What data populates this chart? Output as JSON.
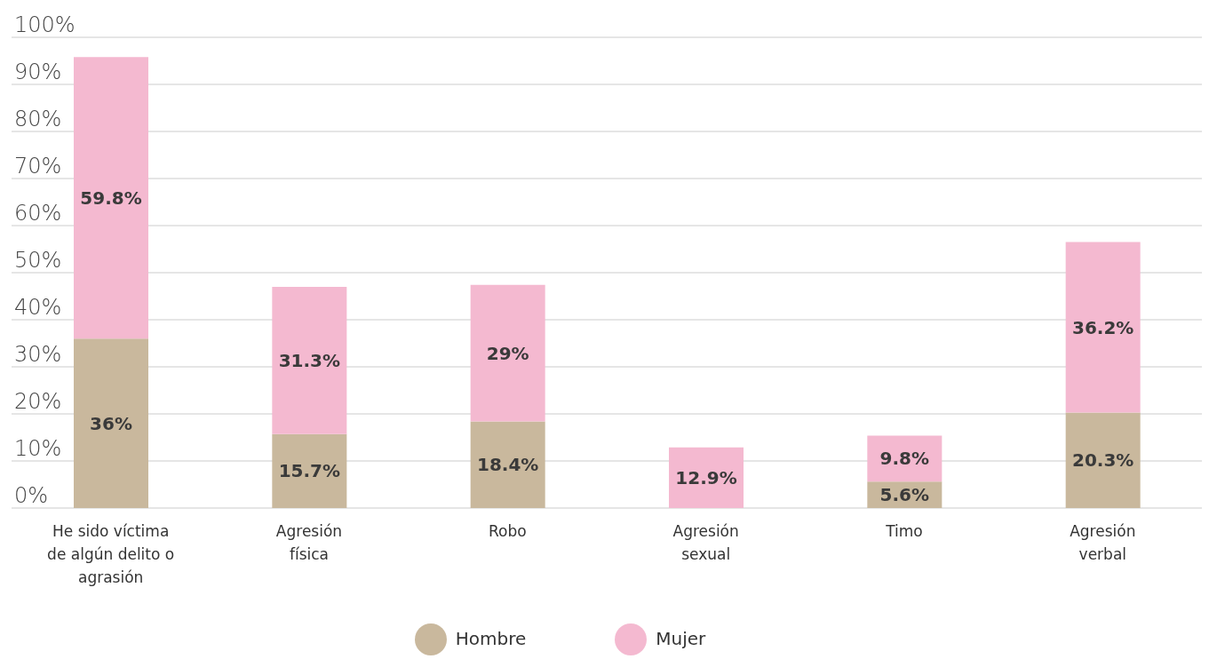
{
  "chart_data": {
    "type": "bar",
    "stacked": true,
    "categories": [
      "He sido víctima de algún delito o agrasión",
      "Agresión física",
      "Robo",
      "Agresión sexual",
      "Timo",
      "Agresión verbal"
    ],
    "series": [
      {
        "name": "Hombre",
        "color": "#c9b89d",
        "values": [
          36,
          15.7,
          18.4,
          null,
          5.6,
          20.3
        ],
        "value_labels": [
          "36%",
          "15.7%",
          "18.4%",
          null,
          "5.6%",
          "20.3%"
        ]
      },
      {
        "name": "Mujer",
        "color": "#f4b9d0",
        "values": [
          59.8,
          31.3,
          29,
          12.9,
          9.8,
          36.2
        ],
        "value_labels": [
          "59.8%",
          "31.3%",
          "29%",
          "12.9%",
          "9.8%",
          "36.2%"
        ]
      }
    ],
    "ylim": [
      0,
      100
    ],
    "yticks": [
      {
        "value": 0,
        "label": "0%"
      },
      {
        "value": 10,
        "label": "10%"
      },
      {
        "value": 20,
        "label": "20%"
      },
      {
        "value": 30,
        "label": "30%"
      },
      {
        "value": 40,
        "label": "40%"
      },
      {
        "value": 50,
        "label": "50%"
      },
      {
        "value": 60,
        "label": "60%"
      },
      {
        "value": 70,
        "label": "70%"
      },
      {
        "value": 80,
        "label": "80%"
      },
      {
        "value": 90,
        "label": "90%"
      },
      {
        "value": 100,
        "label": "100%"
      }
    ],
    "grid": "y",
    "legend": "bottom"
  }
}
